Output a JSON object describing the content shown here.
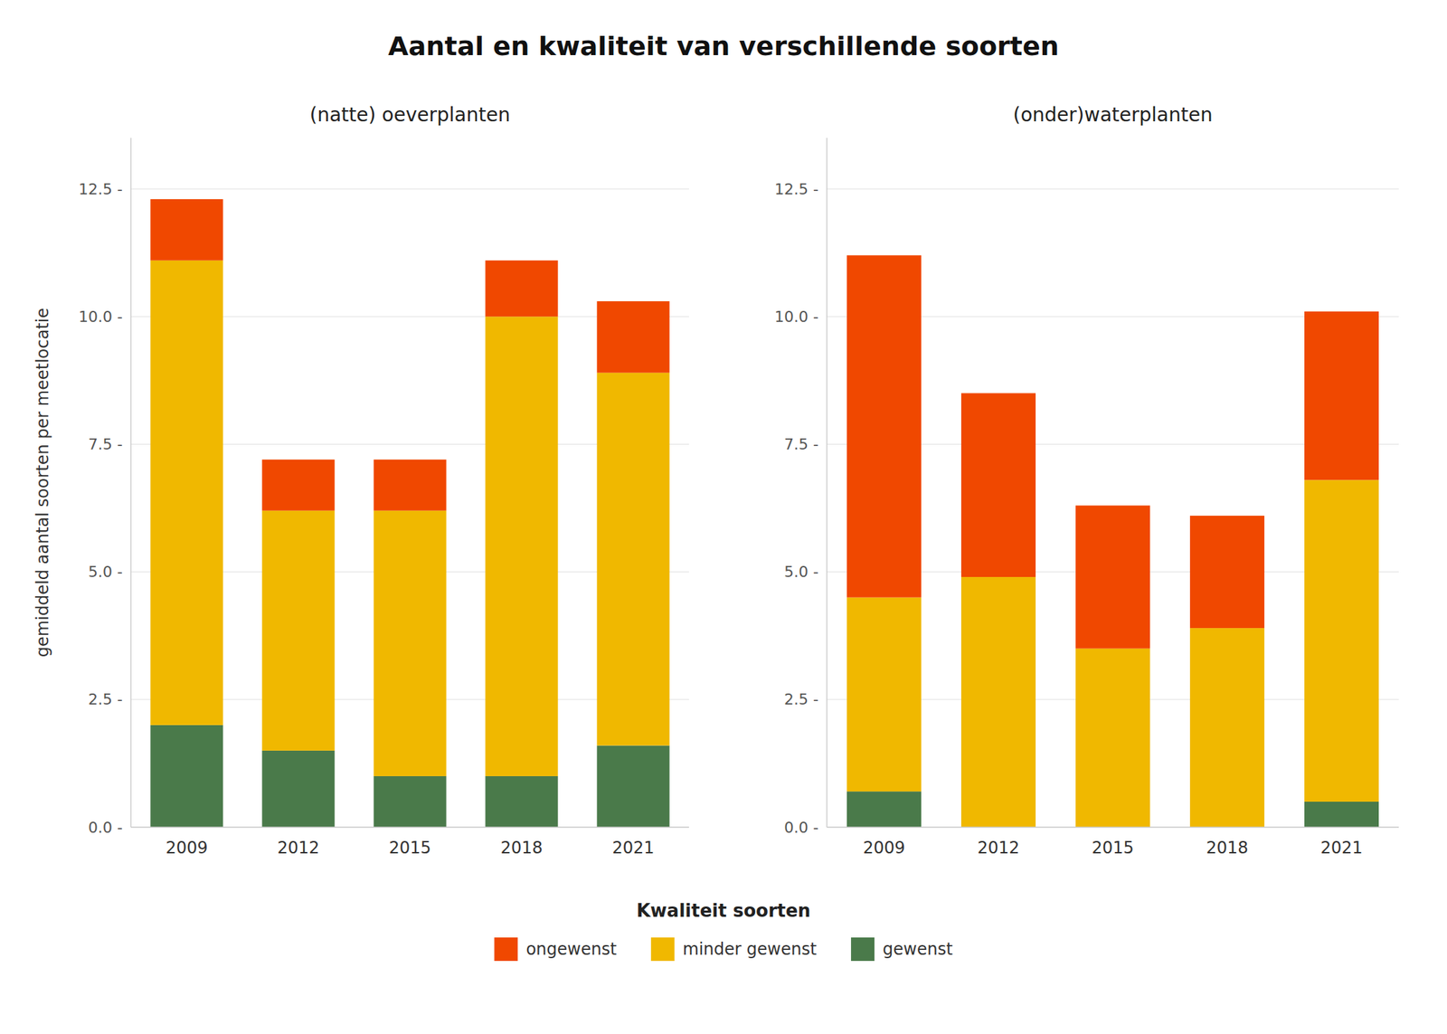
{
  "title": "Aantal en kwaliteit van verschillende soorten",
  "legend_title": "Kwaliteit soorten",
  "chart_data": [
    {
      "type": "bar",
      "stacked": true,
      "grid": true,
      "title": "(natte) oeverplanten",
      "y_label": "gemiddeld aantal soorten per meetlocatie",
      "categories": [
        "2009",
        "2012",
        "2015",
        "2018",
        "2021"
      ],
      "series": [
        {
          "name": "gewenst",
          "color": "#4a7a4a",
          "values": [
            2.0,
            1.5,
            1.0,
            1.0,
            1.6
          ]
        },
        {
          "name": "minder gewenst",
          "color": "#f0b800",
          "values": [
            9.1,
            4.7,
            5.2,
            9.0,
            7.3
          ]
        },
        {
          "name": "ongewenst",
          "color": "#f04800",
          "values": [
            1.2,
            1.0,
            1.0,
            1.1,
            1.4
          ]
        }
      ],
      "ylim": [
        0,
        13.5
      ],
      "yticks": [
        {
          "value": 0.0,
          "label": "0.0 -"
        },
        {
          "value": 2.5,
          "label": "2.5 -"
        },
        {
          "value": 5.0,
          "label": "5.0 -"
        },
        {
          "value": 7.5,
          "label": "7.5 -"
        },
        {
          "value": 10.0,
          "label": "10.0 -"
        },
        {
          "value": 12.5,
          "label": "12.5 -"
        }
      ]
    },
    {
      "type": "bar",
      "stacked": true,
      "grid": true,
      "title": "(onder)waterplanten",
      "categories": [
        "2009",
        "2012",
        "2015",
        "2018",
        "2021"
      ],
      "series": [
        {
          "name": "gewenst",
          "color": "#4a7a4a",
          "values": [
            0.7,
            0.0,
            0.0,
            0.0,
            0.5
          ]
        },
        {
          "name": "minder gewenst",
          "color": "#f0b800",
          "values": [
            3.8,
            4.9,
            3.5,
            3.9,
            6.3
          ]
        },
        {
          "name": "ongewenst",
          "color": "#f04800",
          "values": [
            6.7,
            3.6,
            2.8,
            2.2,
            3.3
          ]
        }
      ],
      "ylim": [
        0,
        13.5
      ],
      "yticks": [
        {
          "value": 0.0,
          "label": "0.0 -"
        },
        {
          "value": 2.5,
          "label": "2.5 -"
        },
        {
          "value": 5.0,
          "label": "5.0 -"
        },
        {
          "value": 7.5,
          "label": "7.5 -"
        },
        {
          "value": 10.0,
          "label": "10.0 -"
        },
        {
          "value": 12.5,
          "label": "12.5 -"
        }
      ]
    }
  ]
}
